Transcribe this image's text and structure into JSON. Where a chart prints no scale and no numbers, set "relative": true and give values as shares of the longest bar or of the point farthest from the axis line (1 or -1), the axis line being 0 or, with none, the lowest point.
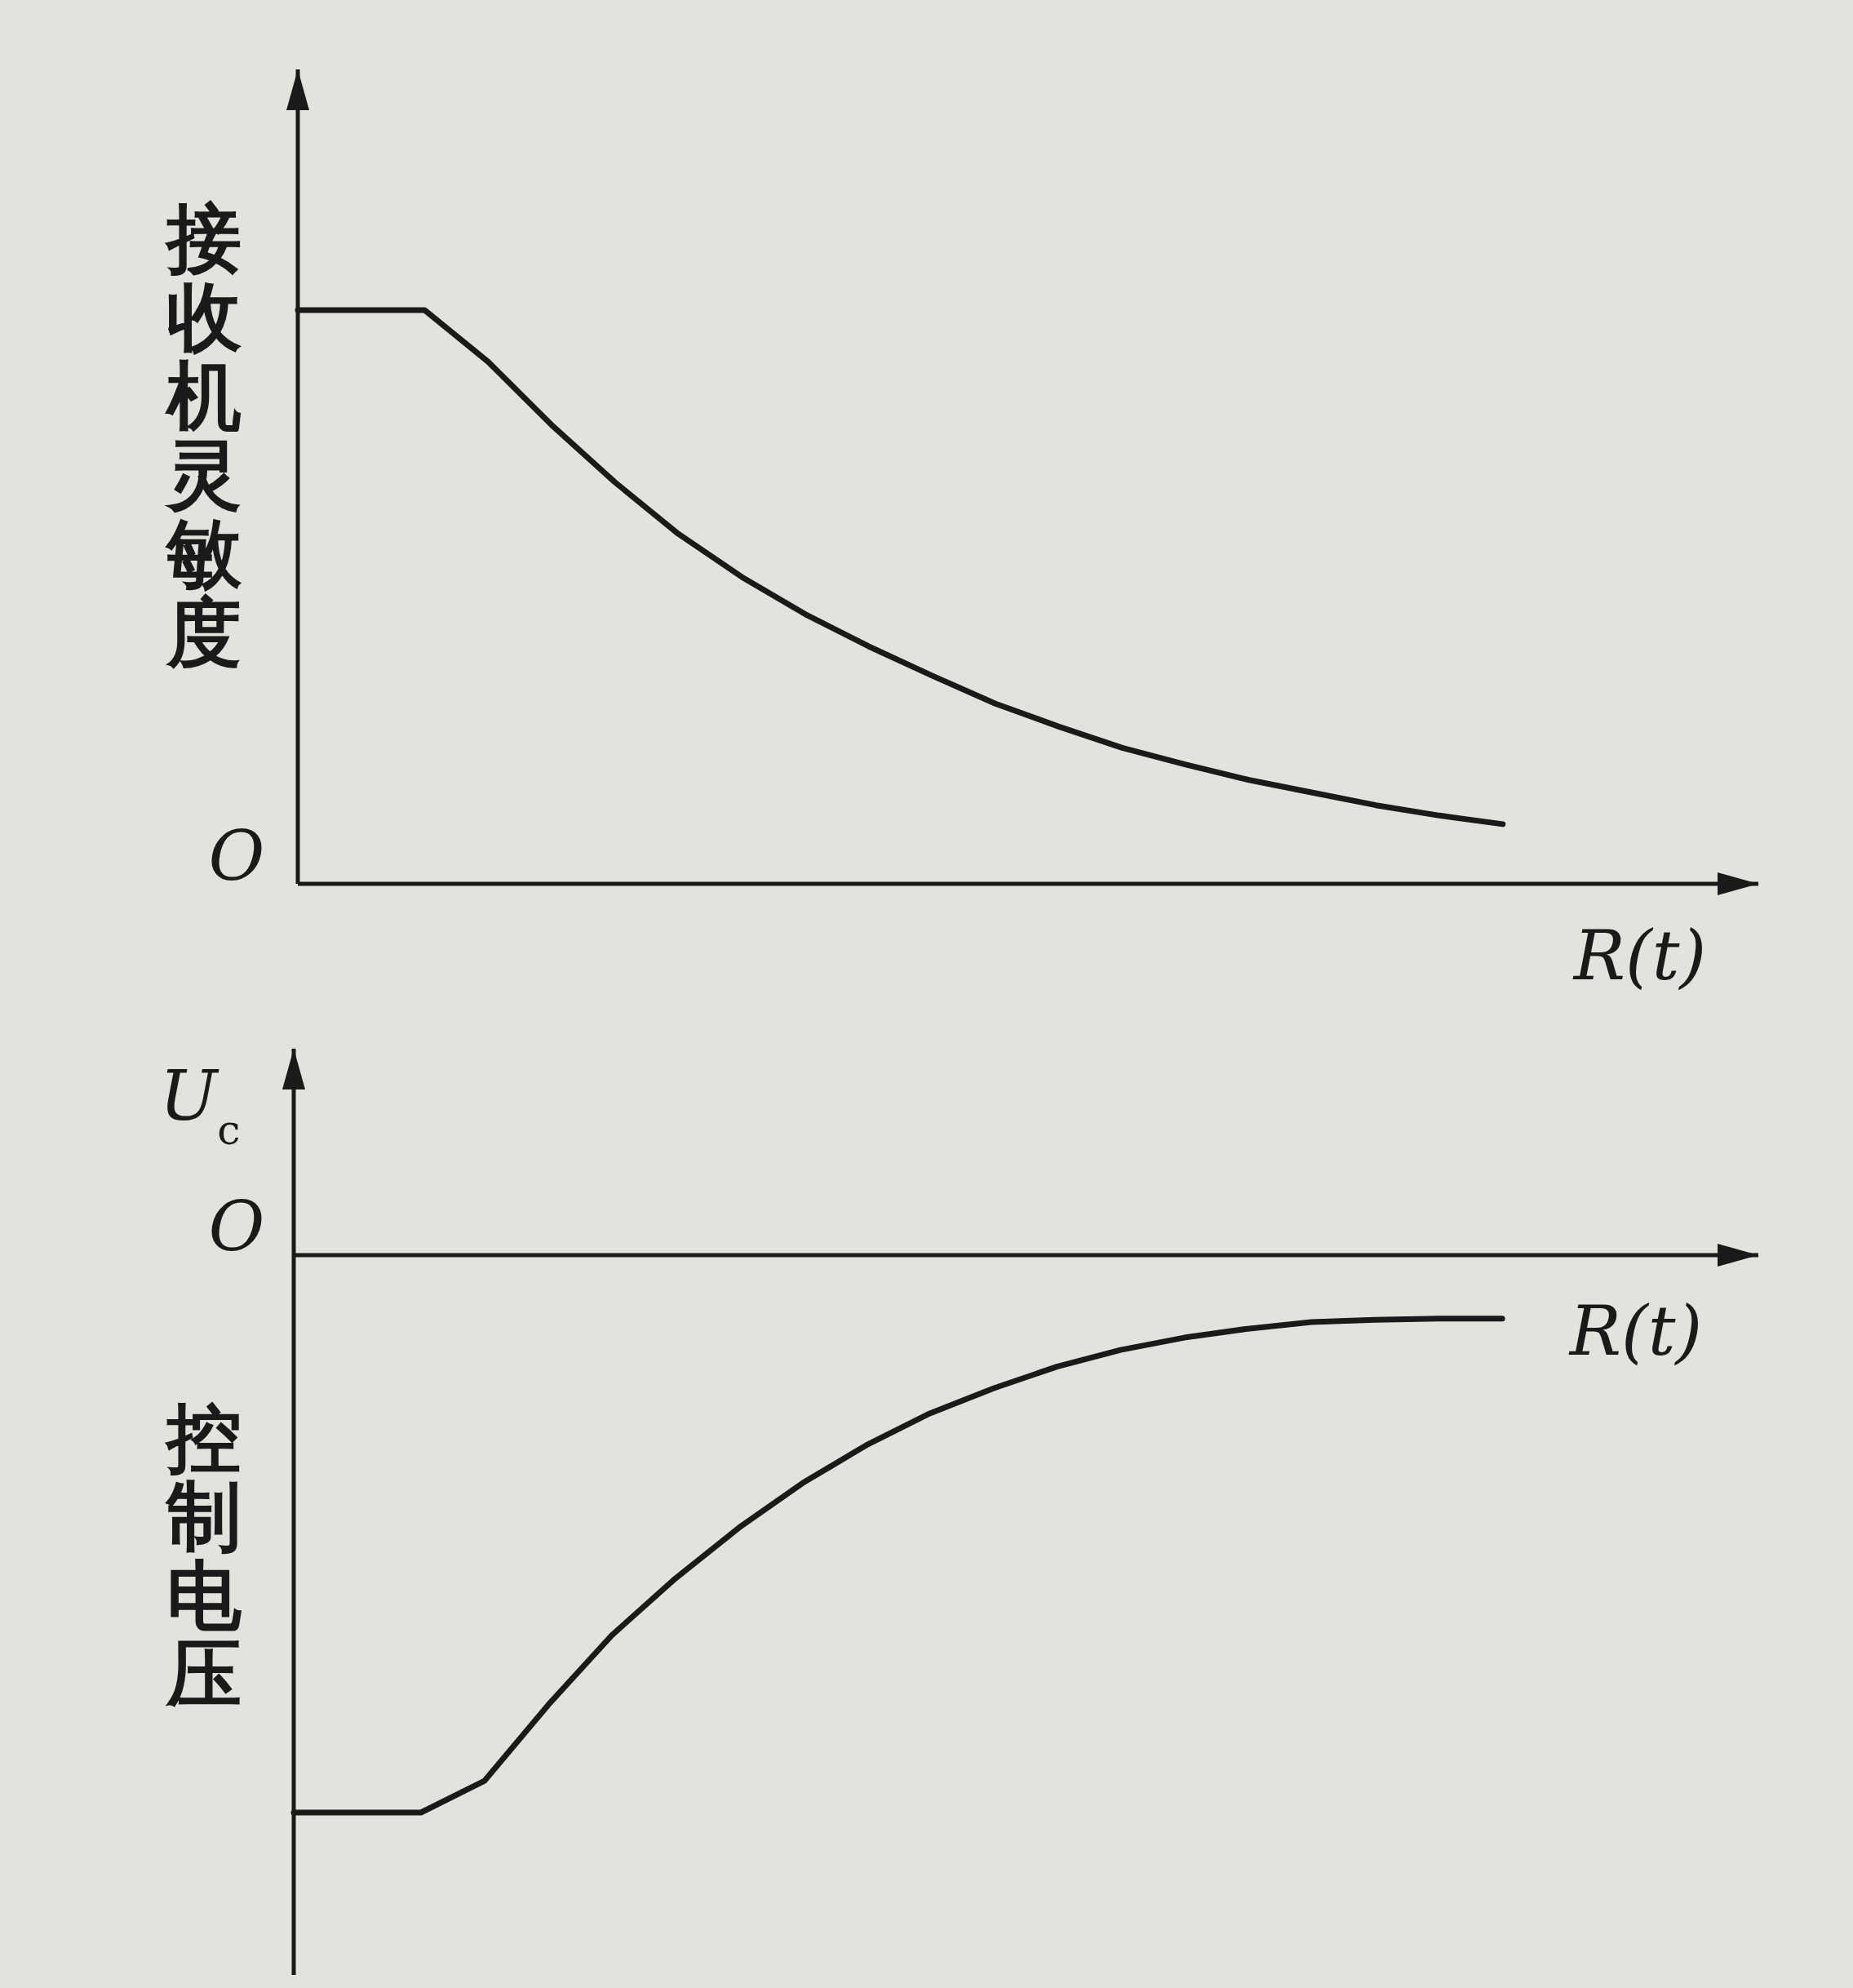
{
  "chart_data": [
    {
      "type": "line",
      "relative": true,
      "ylabel": "接收机灵敏度",
      "xlabel": "R(t)",
      "annotations": [
        "O"
      ],
      "categories": [
        null,
        null,
        null,
        null,
        null,
        null,
        null,
        null,
        null,
        null,
        null,
        null,
        null,
        null,
        null,
        null,
        null,
        null,
        null,
        null,
        null,
        null,
        null
      ],
      "series": [
        {
          "color": "#1a1a1a",
          "values": [
            1,
            1,
            1,
            0.91,
            0.8,
            0.7,
            0.61,
            0.535,
            0.47,
            0.414,
            0.363,
            0.314,
            0.274,
            0.237,
            0.208,
            0.181,
            0.159,
            0.137,
            0.119,
            0.104,
            null,
            null,
            null
          ]
        }
      ]
    },
    {
      "type": "line",
      "relative": true,
      "ylabel": "控制电压",
      "xlabel": "R(t)",
      "annotations": [
        "O",
        "U$_{c}$"
      ],
      "categories": [
        null,
        null,
        null,
        null,
        null,
        null,
        null,
        null,
        null,
        null,
        null,
        null,
        null,
        null,
        null,
        null,
        null,
        null,
        null,
        null,
        null,
        null,
        null
      ],
      "series": [
        {
          "color": "#1a1a1a",
          "values": [
            -1,
            -1,
            -1,
            -0.943,
            -0.807,
            -0.682,
            -0.58,
            -0.489,
            -0.409,
            -0.341,
            -0.284,
            -0.239,
            -0.2,
            -0.17,
            -0.148,
            -0.132,
            -0.12,
            -0.116,
            -0.114,
            -0.114,
            null,
            null,
            null
          ]
        }
      ]
    }
  ]
}
